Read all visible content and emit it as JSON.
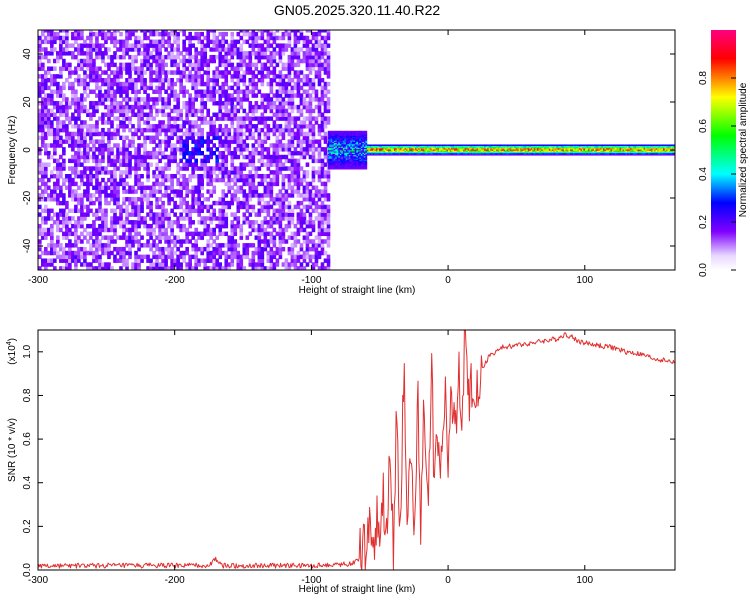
{
  "page": {
    "title": "GN05.2025.320.11.40.R22"
  },
  "chart_data": [
    {
      "type": "heatmap",
      "xlabel": "Height of straight line (km)",
      "ylabel": "Frequency (Hz)",
      "xlim": [
        -300,
        166
      ],
      "ylim": [
        -50,
        50
      ],
      "x_ticks": [
        -300,
        -200,
        -100,
        0,
        100
      ],
      "y_ticks": [
        -40,
        -20,
        0,
        20,
        40
      ],
      "x_tick_labels": [
        "-300",
        "-200",
        "-100",
        "0",
        "100"
      ],
      "y_tick_labels": [
        "-40",
        "-20",
        "0",
        "20",
        "40"
      ],
      "colorbar": {
        "label": "Normalized spectral amplitude",
        "range": [
          0,
          1
        ],
        "ticks": [
          0,
          0.2,
          0.4,
          0.6,
          0.8
        ],
        "tick_labels": [
          "0.0",
          "0.2",
          "0.4",
          "0.6",
          "0.8"
        ],
        "colormap": [
          "#ffffff",
          "#8000ff",
          "#0000ff",
          "#00ffff",
          "#00ff00",
          "#ffff00",
          "#ff0000",
          "#ff0080"
        ]
      },
      "regions": [
        {
          "x": [
            -300,
            -88
          ],
          "y": [
            -50,
            50
          ],
          "level": "low, broadband noise (0.0-0.2)"
        },
        {
          "x": [
            -88,
            -60
          ],
          "y": [
            -6,
            8
          ],
          "level": "mid (0.3-0.6)"
        },
        {
          "x": [
            -60,
            166
          ],
          "y": [
            -2,
            2
          ],
          "level": "high, narrow line near 0 Hz (0.6-1.0)"
        }
      ],
      "grid": false
    },
    {
      "type": "line",
      "xlabel": "Height of straight line (km)",
      "ylabel": "SNR (10 * v/v)",
      "y_multiplier_label": "(x10",
      "y_multiplier_exp": "4",
      "xlim": [
        -300,
        166
      ],
      "ylim": [
        0,
        1.1
      ],
      "x_ticks": [
        -300,
        -200,
        -100,
        0,
        100
      ],
      "y_ticks": [
        0.0,
        0.2,
        0.4,
        0.6,
        0.8,
        1.0
      ],
      "x_tick_labels": [
        "-300",
        "-200",
        "-100",
        "0",
        "100"
      ],
      "y_tick_labels": [
        "0.0",
        "0.2",
        "0.4",
        "0.6",
        "0.8",
        "1.0"
      ],
      "color": "#e03030",
      "series": [
        {
          "x": [
            -300,
            -250,
            -200,
            -175,
            -170,
            -165,
            -150,
            -100,
            -70,
            -60,
            -58,
            -55,
            -52,
            -50,
            -48,
            -45,
            -42,
            -40,
            -38,
            -35,
            -32,
            -30,
            -28,
            -25,
            -22,
            -20,
            -18,
            -15,
            -12,
            -10,
            -8,
            -5,
            -2,
            0,
            2,
            5,
            8,
            10,
            12,
            15,
            18,
            20,
            25,
            30,
            40,
            50,
            60,
            70,
            80,
            85,
            90,
            95,
            100,
            110,
            120,
            130,
            140,
            150,
            160,
            166
          ],
          "y": [
            0.02,
            0.02,
            0.02,
            0.02,
            0.05,
            0.02,
            0.02,
            0.02,
            0.03,
            0.08,
            0.25,
            0.12,
            0.2,
            0.1,
            0.35,
            0.15,
            0.55,
            0.08,
            0.7,
            0.18,
            1.0,
            0.12,
            0.6,
            0.2,
            0.85,
            0.15,
            0.65,
            0.3,
            0.95,
            0.35,
            0.7,
            0.45,
            0.8,
            0.55,
            0.75,
            0.65,
            0.9,
            0.6,
            1.05,
            0.75,
            0.88,
            0.85,
            0.92,
            0.98,
            1.02,
            1.03,
            1.04,
            1.05,
            1.06,
            1.08,
            1.07,
            1.05,
            1.04,
            1.03,
            1.02,
            1.0,
            0.99,
            0.97,
            0.96,
            0.95
          ]
        }
      ],
      "grid": false
    }
  ]
}
